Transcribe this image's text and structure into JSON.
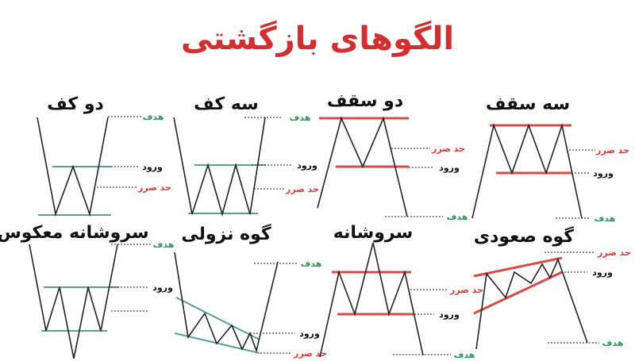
{
  "title": "الگوهای بازگشتی",
  "colors": {
    "title": "#d32f2f",
    "target": "#2e9a5a",
    "stop_loss": "#d9403a",
    "bullish_lines": "#5a9e9a",
    "bearish_lines": "#d94b47"
  },
  "labels": {
    "target": "هدف",
    "entry": "ورود",
    "stop_loss": "حد ضرر"
  },
  "patterns": [
    {
      "title": "دو کف"
    },
    {
      "title": "سه کف"
    },
    {
      "title": "دو سقف"
    },
    {
      "title": "سه سقف"
    },
    {
      "title": "سروشانه معکوس"
    },
    {
      "title": "گوه نزولی"
    },
    {
      "title": "سروشانه"
    },
    {
      "title": "گوه صعودی"
    }
  ]
}
